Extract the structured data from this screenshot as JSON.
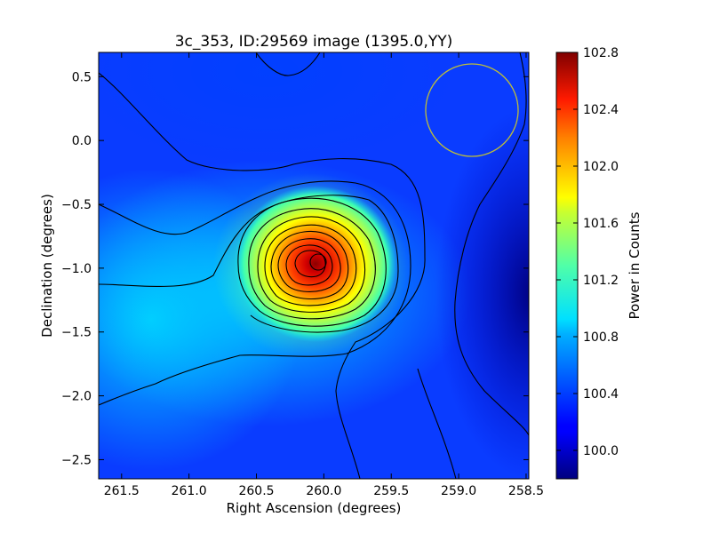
{
  "chart_data": {
    "type": "heatmap",
    "title": "3c_353, ID:29569 image (1395.0,YY)",
    "xlabel": "Right Ascension (degrees)",
    "ylabel": "Declination (degrees)",
    "xlim": [
      261.67,
      258.48
    ],
    "ylim": [
      -2.65,
      0.69
    ],
    "x_ticks": [
      261.5,
      261.0,
      260.5,
      260.0,
      259.5,
      259.0,
      258.5
    ],
    "x_tick_labels": [
      "261.5",
      "261.0",
      "260.5",
      "260.0",
      "259.5",
      "259.0",
      "258.5"
    ],
    "y_ticks": [
      0.5,
      0.0,
      -0.5,
      -1.0,
      -1.5,
      -2.0,
      -2.5
    ],
    "y_tick_labels": [
      "0.5",
      "0.0",
      "−0.5",
      "−1.0",
      "−1.5",
      "−2.0",
      "−2.5"
    ],
    "colorbar": {
      "label": "Power in Counts",
      "range": [
        99.8,
        102.8
      ],
      "ticks": [
        100.0,
        100.4,
        100.8,
        101.2,
        101.6,
        102.0,
        102.4,
        102.8
      ],
      "tick_labels": [
        "100.0",
        "100.4",
        "100.8",
        "101.2",
        "101.6",
        "102.0",
        "102.4",
        "102.8"
      ],
      "colormap": "jet"
    },
    "peak": {
      "ra": 260.09,
      "dec": -0.95,
      "value": 102.75
    },
    "annotation_circle": {
      "ra": 258.85,
      "dec": 0.24,
      "radius_deg": 0.37,
      "color": "#bdbd3a"
    },
    "contour_color": "#000000",
    "grid": false
  }
}
